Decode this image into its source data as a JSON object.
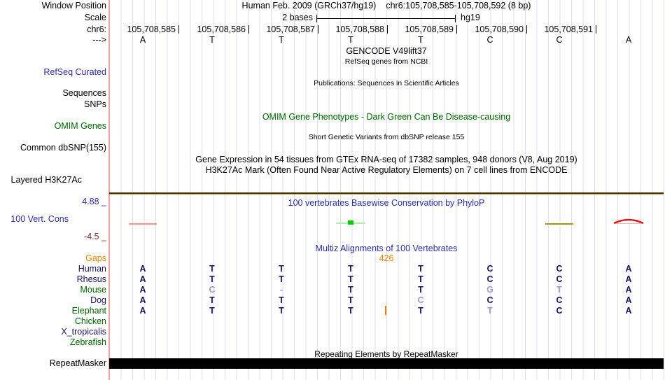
{
  "colors": {
    "track_title_blue": "#2e2e9e",
    "omim_green": "#006400",
    "species_navy": "#16165c",
    "faded_letter": "#9c9cc6",
    "gaps_orange": "#e28500",
    "axis_min_maroon": "#7e3030",
    "grid_line": "#dcdcf2",
    "track_edge_pink": "#ff9f9f",
    "repeat_bar_black": "#000000",
    "h3k27ac_line_orange": "#dd9800",
    "phylop_positive_green": "#00cc00",
    "phylop_negative_pink": "#ff8f8f",
    "phylop_negative_olive": "#a89a00",
    "phylop_positive_red": "#e80000"
  },
  "header": {
    "left_labels": {
      "row1": "Window Position",
      "row2": "Scale",
      "row3": "chr6:",
      "row4": "--->"
    },
    "assembly_title": "Human Feb. 2009 (GRCh37/hg19)",
    "position_title": "chr6:105,708,585-105,708,592 (8 bp)",
    "scale": {
      "label": "2 bases",
      "assembly": "hg19"
    },
    "coordinates": [
      "105,708,585",
      "105,708,586",
      "105,708,587",
      "105,708,588",
      "105,708,589",
      "105,708,590",
      "105,708,591"
    ],
    "reference_bases": [
      "A",
      "T",
      "T",
      "T",
      "T",
      "C",
      "C",
      "A"
    ]
  },
  "tracks": {
    "gencode": {
      "title": "GENCODE V49lift37",
      "subtitle": "RefSeq genes from NCBI"
    },
    "refseq": {
      "left_label": "RefSeq Curated"
    },
    "publications": {
      "left_label_1": "Sequences",
      "left_label_2": "SNPs",
      "title": "Publications: Sequences in Scientific Articles"
    },
    "omim": {
      "left_label": "OMIM Genes",
      "title": "OMIM Gene Phenotypes - Dark Green Can Be Disease-causing"
    },
    "dbsnp": {
      "left_label": "Common dbSNP(155)",
      "title": "Short Genetic Variants from dbSNP release 155"
    },
    "gtex": {
      "title": "Gene Expression in 54 tissues from GTEx RNA-seq of 17382 samples, 948 donors (V8, Aug 2019)"
    },
    "h3k27ac": {
      "left_label": "Layered H3K27Ac",
      "title": "H3K27Ac Mark (Often Found Near Active Regulatory Elements) on 7 cell lines from ENCODE"
    },
    "phylop": {
      "left_label": "100 Vert. Cons",
      "axis_max": "4.88 _",
      "axis_min": "-4.5 _",
      "title": "100 vertebrates Basewise Conservation by PhyloP",
      "marks": [
        {
          "column": 1,
          "kind": "dash",
          "color": "#ff8f8f"
        },
        {
          "column": 4,
          "kind": "box-on-dash",
          "color": "#00cc00",
          "dash_color": "#b2ecb2"
        },
        {
          "column": 7,
          "kind": "dash",
          "color": "#a89a00"
        },
        {
          "column": 8,
          "kind": "arch",
          "color": "#e80000",
          "dash_color": "#ffb0b0"
        }
      ]
    },
    "multiz": {
      "title": "Multiz Alignments of 100 Vertebrates",
      "gaps_left_label": "Gaps",
      "insert_size_label": "426",
      "insert_after_column": 4,
      "species": [
        {
          "name": "Human",
          "label_color": "#16165c",
          "bases": [
            "A",
            "T",
            "T",
            "T",
            "T",
            "C",
            "C",
            "A"
          ],
          "faded": []
        },
        {
          "name": "Rhesus",
          "label_color": "#16165c",
          "bases": [
            "A",
            "T",
            "T",
            "T",
            "T",
            "C",
            "C",
            "A"
          ],
          "faded": []
        },
        {
          "name": "Mouse",
          "label_color": "#006400",
          "bases": [
            "A",
            "C",
            "-",
            "T",
            "T",
            "G",
            "T",
            "A"
          ],
          "faded": [
            2,
            3,
            6,
            7
          ]
        },
        {
          "name": "Dog",
          "label_color": "#16165c",
          "bases": [
            "A",
            "T",
            "T",
            "T",
            "C",
            "C",
            "C",
            "A"
          ],
          "faded": [
            5
          ]
        },
        {
          "name": "Elephant",
          "label_color": "#006400",
          "bases": [
            "A",
            "T",
            "T",
            "T",
            "T",
            "T",
            "C",
            "A"
          ],
          "faded": [
            6
          ]
        },
        {
          "name": "Chicken",
          "label_color": "#006400",
          "bases": [],
          "faded": []
        },
        {
          "name": "X_tropicalis",
          "label_color": "#16165c",
          "bases": [],
          "faded": []
        },
        {
          "name": "Zebrafish",
          "label_color": "#006400",
          "bases": [],
          "faded": []
        }
      ]
    },
    "repeatmasker": {
      "left_label": "RepeatMasker",
      "title": "Repeating Elements by RepeatMasker"
    }
  }
}
